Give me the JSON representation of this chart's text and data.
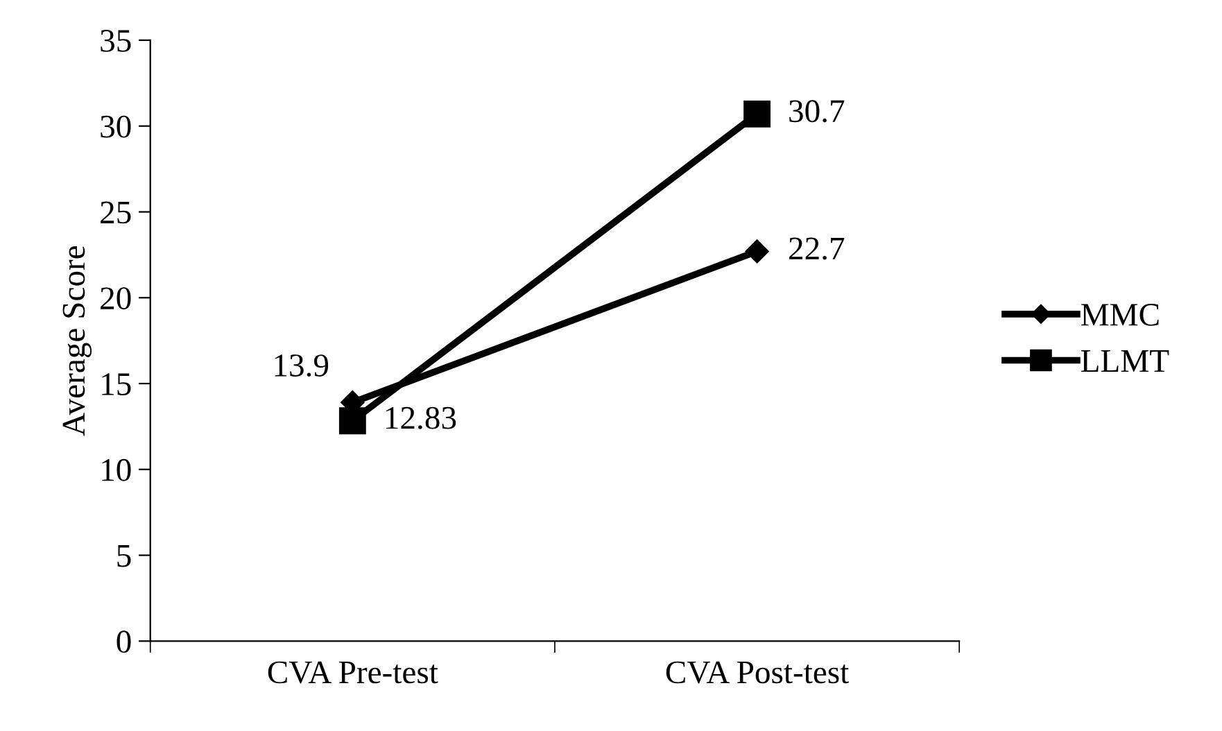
{
  "chart_data": {
    "type": "line",
    "ylabel": "Average Score",
    "categories": [
      "CVA Pre-test",
      "CVA Post-test"
    ],
    "series": [
      {
        "name": "MMC",
        "color": "#000000",
        "values": [
          13.9,
          22.7
        ],
        "marker": "diamond"
      },
      {
        "name": "LLMT",
        "color": "#000000",
        "values": [
          12.83,
          30.7
        ],
        "marker": "square"
      }
    ],
    "ylim": [
      0,
      35
    ],
    "yticks": [
      0,
      5,
      10,
      15,
      20,
      25,
      30,
      35
    ],
    "grid": false,
    "legend": "right",
    "data_labels": true,
    "line_style": "solid"
  }
}
